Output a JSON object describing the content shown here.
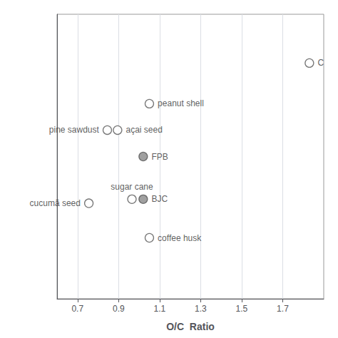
{
  "chart_data": {
    "type": "scatter",
    "xlabel": "O/C  Ratio",
    "labels": [
      "peanut shell",
      "açai seed",
      "pine sawdust",
      "FPB",
      "cucumã seed",
      "sugar cane",
      "BJC",
      "coffee husk",
      "C"
    ],
    "x": [
      1.05,
      0.895,
      0.845,
      1.02,
      0.755,
      0.965,
      1.02,
      1.05,
      1.83
    ],
    "values": [
      1.63,
      1.565,
      1.565,
      1.5,
      1.385,
      1.395,
      1.395,
      1.3,
      1.73
    ],
    "colors": [
      "#ffffff",
      "#ffffff",
      "#ffffff",
      "#888888",
      "#ffffff",
      "#ffffff",
      "#888888",
      "#ffffff",
      "#ffffff"
    ],
    "color": "#555555",
    "xlim": [
      0.6,
      1.9
    ],
    "ylim": [
      1.15,
      1.85
    ],
    "xticks": [
      0.7,
      0.9,
      1.1,
      1.3,
      1.5,
      1.7
    ],
    "grid": true,
    "tick_labels": "x"
  }
}
